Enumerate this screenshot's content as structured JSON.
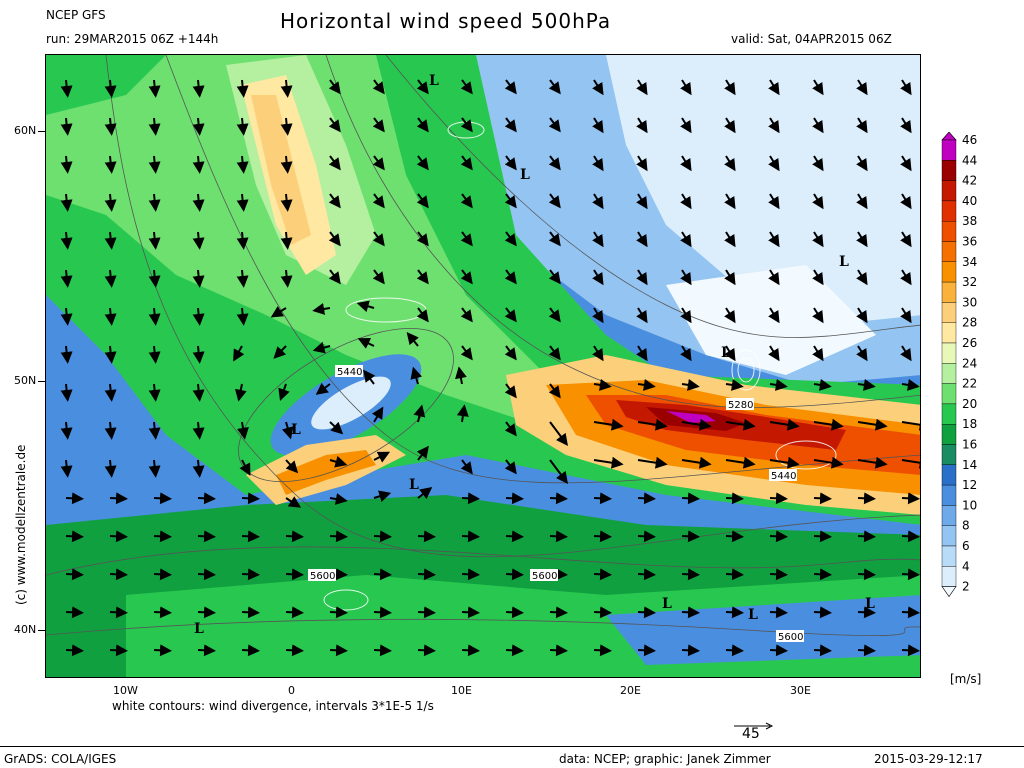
{
  "header": {
    "model": "NCEP GFS",
    "run": "run: 29MAR2015 06Z +144h",
    "title": "Horizontal wind speed 500hPa",
    "valid": "valid: Sat, 04APR2015 06Z"
  },
  "map": {
    "lat_labels": [
      "60N",
      "50N",
      "40N"
    ],
    "lon_labels": [
      "10W",
      "0",
      "10E",
      "20E",
      "30E"
    ],
    "lows": [
      "L",
      "L",
      "L",
      "L",
      "L",
      "L",
      "L",
      "L",
      "L",
      "L"
    ],
    "height_labels": [
      "5440",
      "5280",
      "5440",
      "5600",
      "5600",
      "5600"
    ]
  },
  "colorbar": {
    "unit": "[m/s]",
    "ticks": [
      "46",
      "44",
      "42",
      "40",
      "38",
      "36",
      "34",
      "32",
      "30",
      "28",
      "26",
      "24",
      "22",
      "20",
      "18",
      "16",
      "14",
      "12",
      "10",
      "8",
      "6",
      "4",
      "2"
    ],
    "colors": [
      "#c000c0",
      "#9b0000",
      "#c41800",
      "#e03000",
      "#ee5000",
      "#f47000",
      "#f89000",
      "#fab23c",
      "#fcd07a",
      "#fee8a2",
      "#e8f8b8",
      "#b4f0a0",
      "#6ee070",
      "#28c850",
      "#10a040",
      "#1a8c64",
      "#2a70c8",
      "#4a8ee0",
      "#6eaaea",
      "#94c4f2",
      "#b8dcf8",
      "#dceefc",
      "#f2faff"
    ]
  },
  "footer": {
    "divergence_note": "white contours: wind divergence, intervals 3*1E-5 1/s",
    "ref_vector": "45",
    "grads": "GrADS: COLA/IGES",
    "data_credit": "data: NCEP; graphic: Janek Zimmer",
    "timestamp": "2015-03-29-12:17",
    "site_credit": "(c) www.modellzentrale.de"
  }
}
